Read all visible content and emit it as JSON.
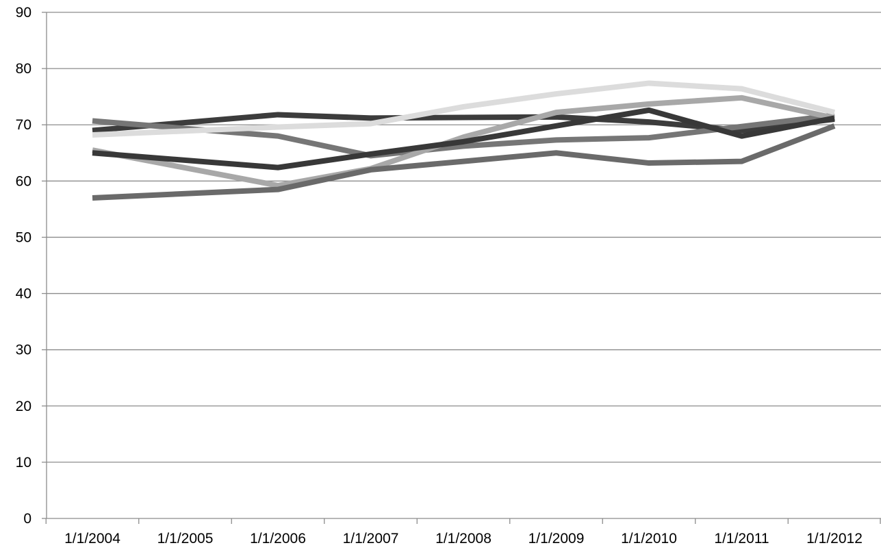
{
  "chart_data": {
    "type": "line",
    "title": "",
    "xlabel": "",
    "ylabel": "",
    "x": [
      "1/1/2004",
      "1/1/2005",
      "1/1/2006",
      "1/1/2007",
      "1/1/2008",
      "1/1/2009",
      "1/1/2010",
      "1/1/2011",
      "1/1/2012"
    ],
    "x_tick_labels": [
      "1/1/2004",
      "1/1/2005",
      "1/1/2006",
      "1/1/2007",
      "1/1/2008",
      "1/1/2009",
      "1/1/2010",
      "1/1/2011",
      "1/1/2012"
    ],
    "ylim": [
      0,
      90
    ],
    "y_ticks": [
      0,
      10,
      20,
      30,
      40,
      50,
      60,
      70,
      80,
      90
    ],
    "grid": true,
    "legend": "none",
    "series": [
      {
        "color": "#3c3c3c",
        "points": [
          [
            "1/1/2004",
            69.0
          ],
          [
            "1/1/2006",
            71.8
          ],
          [
            "1/1/2007",
            71.2
          ],
          [
            "1/1/2008",
            71.3
          ],
          [
            "1/1/2009",
            71.4
          ],
          [
            "1/1/2010",
            70.5
          ],
          [
            "1/1/2011",
            69.0
          ],
          [
            "1/1/2012",
            71.0
          ]
        ]
      },
      {
        "color": "#767676",
        "points": [
          [
            "1/1/2004",
            70.7
          ],
          [
            "1/1/2006",
            68.0
          ],
          [
            "1/1/2007",
            64.5
          ],
          [
            "1/1/2008",
            66.2
          ],
          [
            "1/1/2009",
            67.3
          ],
          [
            "1/1/2010",
            67.7
          ],
          [
            "1/1/2011",
            69.7
          ],
          [
            "1/1/2012",
            71.7
          ]
        ]
      },
      {
        "color": "#dcdcdc",
        "points": [
          [
            "1/1/2004",
            68.2
          ],
          [
            "1/1/2006",
            69.6
          ],
          [
            "1/1/2007",
            70.2
          ],
          [
            "1/1/2008",
            73.2
          ],
          [
            "1/1/2009",
            75.5
          ],
          [
            "1/1/2010",
            77.4
          ],
          [
            "1/1/2011",
            76.4
          ],
          [
            "1/1/2012",
            72.2
          ]
        ]
      },
      {
        "color": "#a8a8a8",
        "points": [
          [
            "1/1/2004",
            65.5
          ],
          [
            "1/1/2006",
            59.2
          ],
          [
            "1/1/2007",
            62.2
          ],
          [
            "1/1/2008",
            67.8
          ],
          [
            "1/1/2009",
            72.2
          ],
          [
            "1/1/2010",
            73.7
          ],
          [
            "1/1/2011",
            74.8
          ],
          [
            "1/1/2012",
            71.2
          ]
        ]
      },
      {
        "color": "#6a6a6a",
        "points": [
          [
            "1/1/2004",
            57.0
          ],
          [
            "1/1/2006",
            58.5
          ],
          [
            "1/1/2007",
            62.0
          ],
          [
            "1/1/2008",
            63.5
          ],
          [
            "1/1/2009",
            65.0
          ],
          [
            "1/1/2010",
            63.2
          ],
          [
            "1/1/2011",
            63.5
          ],
          [
            "1/1/2012",
            69.8
          ]
        ]
      },
      {
        "color": "#383838",
        "points": [
          [
            "1/1/2004",
            65.0
          ],
          [
            "1/1/2006",
            62.4
          ],
          [
            "1/1/2007",
            64.8
          ],
          [
            "1/1/2008",
            67.0
          ],
          [
            "1/1/2009",
            69.8
          ],
          [
            "1/1/2010",
            72.6
          ],
          [
            "1/1/2011",
            68.0
          ],
          [
            "1/1/2012",
            71.2
          ]
        ]
      }
    ]
  }
}
